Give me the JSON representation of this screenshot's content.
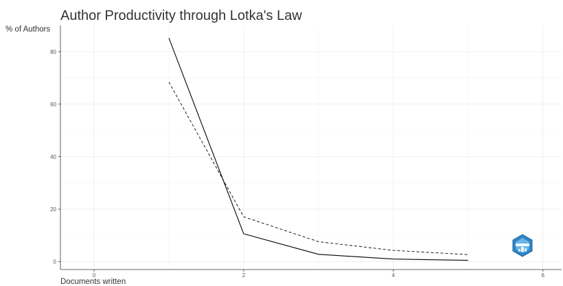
{
  "chart_data": {
    "type": "line",
    "title": "Author Productivity through Lotka's Law",
    "xlabel": "Documents written",
    "ylabel": "% of Authors",
    "xlim": [
      -0.45,
      6.25
    ],
    "ylim": [
      -3,
      90
    ],
    "x_ticks": [
      0,
      2,
      4,
      6
    ],
    "y_ticks": [
      0,
      20,
      40,
      60,
      80
    ],
    "grid": true,
    "series": [
      {
        "style": "solid",
        "color": "#000000",
        "x": [
          1,
          2,
          3,
          4,
          5
        ],
        "y": [
          85.2,
          10.6,
          2.8,
          1.0,
          0.5
        ]
      },
      {
        "style": "dashed",
        "color": "#000000",
        "x": [
          1,
          2,
          3,
          4,
          5
        ],
        "y": [
          68.4,
          17.1,
          7.6,
          4.3,
          2.7
        ]
      }
    ],
    "logo": {
      "icon": "bibliometrix-logo-icon",
      "color": "#2f86c8"
    }
  }
}
